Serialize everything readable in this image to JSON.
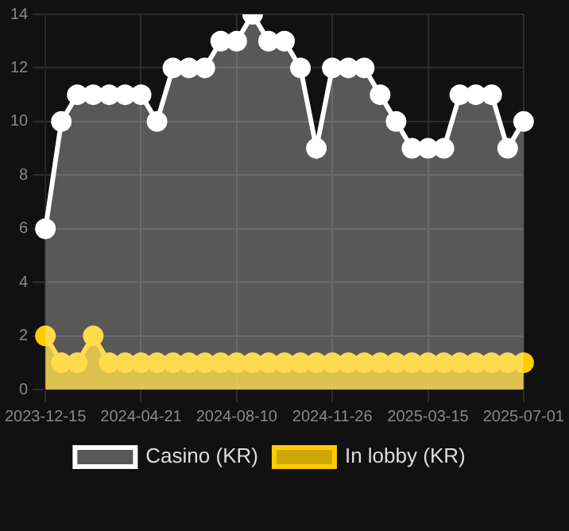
{
  "chart_data": {
    "type": "area",
    "categories": [
      "2023-12-15",
      null,
      null,
      null,
      null,
      null,
      "2024-04-21",
      null,
      null,
      null,
      null,
      null,
      "2024-08-10",
      null,
      null,
      null,
      null,
      null,
      "2024-11-26",
      null,
      null,
      null,
      null,
      null,
      "2025-03-15",
      null,
      null,
      null,
      null,
      null,
      "2025-07-01"
    ],
    "series": [
      {
        "name": "In lobby (KR)",
        "color": "#ffcc00",
        "values": [
          2,
          1,
          1,
          2,
          1,
          1,
          1,
          1,
          1,
          1,
          1,
          1,
          1,
          1,
          1,
          1,
          1,
          1,
          1,
          1,
          1,
          1,
          1,
          1,
          1,
          1,
          1,
          1,
          1,
          1,
          1
        ]
      },
      {
        "name": "Casino (KR)",
        "color": "#ffffff",
        "values": [
          6,
          10,
          11,
          11,
          11,
          11,
          11,
          10,
          12,
          12,
          12,
          13,
          13,
          14,
          13,
          13,
          12,
          9,
          12,
          12,
          12,
          11,
          10,
          9,
          9,
          9,
          11,
          11,
          11,
          9,
          10
        ]
      }
    ],
    "ylim": [
      0,
      14
    ],
    "yticks": [
      0,
      2,
      4,
      6,
      8,
      10,
      12,
      14
    ],
    "grid": true,
    "legend": "bottom",
    "marker": "circle"
  }
}
